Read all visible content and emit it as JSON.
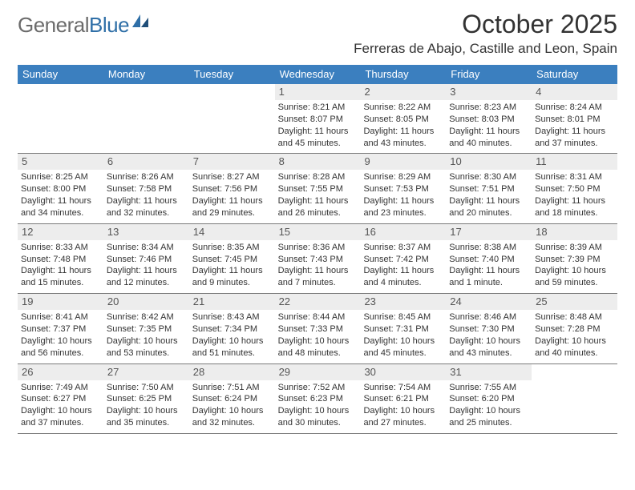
{
  "logo": {
    "general": "General",
    "blue": "Blue"
  },
  "header": {
    "title": "October 2025",
    "location": "Ferreras de Abajo, Castille and Leon, Spain"
  },
  "colors": {
    "headerBar": "#3b7fbf",
    "dayShade": "#ededed",
    "rule": "#7a7a7a",
    "text": "#333333",
    "logoGray": "#6b6b6b",
    "logoBlue": "#2f6fa7"
  },
  "dow": [
    "Sunday",
    "Monday",
    "Tuesday",
    "Wednesday",
    "Thursday",
    "Friday",
    "Saturday"
  ],
  "weeks": [
    [
      null,
      null,
      null,
      {
        "n": "1",
        "sr": "Sunrise: 8:21 AM",
        "ss": "Sunset: 8:07 PM",
        "d1": "Daylight: 11 hours",
        "d2": "and 45 minutes."
      },
      {
        "n": "2",
        "sr": "Sunrise: 8:22 AM",
        "ss": "Sunset: 8:05 PM",
        "d1": "Daylight: 11 hours",
        "d2": "and 43 minutes."
      },
      {
        "n": "3",
        "sr": "Sunrise: 8:23 AM",
        "ss": "Sunset: 8:03 PM",
        "d1": "Daylight: 11 hours",
        "d2": "and 40 minutes."
      },
      {
        "n": "4",
        "sr": "Sunrise: 8:24 AM",
        "ss": "Sunset: 8:01 PM",
        "d1": "Daylight: 11 hours",
        "d2": "and 37 minutes."
      }
    ],
    [
      {
        "n": "5",
        "sr": "Sunrise: 8:25 AM",
        "ss": "Sunset: 8:00 PM",
        "d1": "Daylight: 11 hours",
        "d2": "and 34 minutes."
      },
      {
        "n": "6",
        "sr": "Sunrise: 8:26 AM",
        "ss": "Sunset: 7:58 PM",
        "d1": "Daylight: 11 hours",
        "d2": "and 32 minutes."
      },
      {
        "n": "7",
        "sr": "Sunrise: 8:27 AM",
        "ss": "Sunset: 7:56 PM",
        "d1": "Daylight: 11 hours",
        "d2": "and 29 minutes."
      },
      {
        "n": "8",
        "sr": "Sunrise: 8:28 AM",
        "ss": "Sunset: 7:55 PM",
        "d1": "Daylight: 11 hours",
        "d2": "and 26 minutes."
      },
      {
        "n": "9",
        "sr": "Sunrise: 8:29 AM",
        "ss": "Sunset: 7:53 PM",
        "d1": "Daylight: 11 hours",
        "d2": "and 23 minutes."
      },
      {
        "n": "10",
        "sr": "Sunrise: 8:30 AM",
        "ss": "Sunset: 7:51 PM",
        "d1": "Daylight: 11 hours",
        "d2": "and 20 minutes."
      },
      {
        "n": "11",
        "sr": "Sunrise: 8:31 AM",
        "ss": "Sunset: 7:50 PM",
        "d1": "Daylight: 11 hours",
        "d2": "and 18 minutes."
      }
    ],
    [
      {
        "n": "12",
        "sr": "Sunrise: 8:33 AM",
        "ss": "Sunset: 7:48 PM",
        "d1": "Daylight: 11 hours",
        "d2": "and 15 minutes."
      },
      {
        "n": "13",
        "sr": "Sunrise: 8:34 AM",
        "ss": "Sunset: 7:46 PM",
        "d1": "Daylight: 11 hours",
        "d2": "and 12 minutes."
      },
      {
        "n": "14",
        "sr": "Sunrise: 8:35 AM",
        "ss": "Sunset: 7:45 PM",
        "d1": "Daylight: 11 hours",
        "d2": "and 9 minutes."
      },
      {
        "n": "15",
        "sr": "Sunrise: 8:36 AM",
        "ss": "Sunset: 7:43 PM",
        "d1": "Daylight: 11 hours",
        "d2": "and 7 minutes."
      },
      {
        "n": "16",
        "sr": "Sunrise: 8:37 AM",
        "ss": "Sunset: 7:42 PM",
        "d1": "Daylight: 11 hours",
        "d2": "and 4 minutes."
      },
      {
        "n": "17",
        "sr": "Sunrise: 8:38 AM",
        "ss": "Sunset: 7:40 PM",
        "d1": "Daylight: 11 hours",
        "d2": "and 1 minute."
      },
      {
        "n": "18",
        "sr": "Sunrise: 8:39 AM",
        "ss": "Sunset: 7:39 PM",
        "d1": "Daylight: 10 hours",
        "d2": "and 59 minutes."
      }
    ],
    [
      {
        "n": "19",
        "sr": "Sunrise: 8:41 AM",
        "ss": "Sunset: 7:37 PM",
        "d1": "Daylight: 10 hours",
        "d2": "and 56 minutes."
      },
      {
        "n": "20",
        "sr": "Sunrise: 8:42 AM",
        "ss": "Sunset: 7:35 PM",
        "d1": "Daylight: 10 hours",
        "d2": "and 53 minutes."
      },
      {
        "n": "21",
        "sr": "Sunrise: 8:43 AM",
        "ss": "Sunset: 7:34 PM",
        "d1": "Daylight: 10 hours",
        "d2": "and 51 minutes."
      },
      {
        "n": "22",
        "sr": "Sunrise: 8:44 AM",
        "ss": "Sunset: 7:33 PM",
        "d1": "Daylight: 10 hours",
        "d2": "and 48 minutes."
      },
      {
        "n": "23",
        "sr": "Sunrise: 8:45 AM",
        "ss": "Sunset: 7:31 PM",
        "d1": "Daylight: 10 hours",
        "d2": "and 45 minutes."
      },
      {
        "n": "24",
        "sr": "Sunrise: 8:46 AM",
        "ss": "Sunset: 7:30 PM",
        "d1": "Daylight: 10 hours",
        "d2": "and 43 minutes."
      },
      {
        "n": "25",
        "sr": "Sunrise: 8:48 AM",
        "ss": "Sunset: 7:28 PM",
        "d1": "Daylight: 10 hours",
        "d2": "and 40 minutes."
      }
    ],
    [
      {
        "n": "26",
        "sr": "Sunrise: 7:49 AM",
        "ss": "Sunset: 6:27 PM",
        "d1": "Daylight: 10 hours",
        "d2": "and 37 minutes."
      },
      {
        "n": "27",
        "sr": "Sunrise: 7:50 AM",
        "ss": "Sunset: 6:25 PM",
        "d1": "Daylight: 10 hours",
        "d2": "and 35 minutes."
      },
      {
        "n": "28",
        "sr": "Sunrise: 7:51 AM",
        "ss": "Sunset: 6:24 PM",
        "d1": "Daylight: 10 hours",
        "d2": "and 32 minutes."
      },
      {
        "n": "29",
        "sr": "Sunrise: 7:52 AM",
        "ss": "Sunset: 6:23 PM",
        "d1": "Daylight: 10 hours",
        "d2": "and 30 minutes."
      },
      {
        "n": "30",
        "sr": "Sunrise: 7:54 AM",
        "ss": "Sunset: 6:21 PM",
        "d1": "Daylight: 10 hours",
        "d2": "and 27 minutes."
      },
      {
        "n": "31",
        "sr": "Sunrise: 7:55 AM",
        "ss": "Sunset: 6:20 PM",
        "d1": "Daylight: 10 hours",
        "d2": "and 25 minutes."
      },
      null
    ]
  ]
}
